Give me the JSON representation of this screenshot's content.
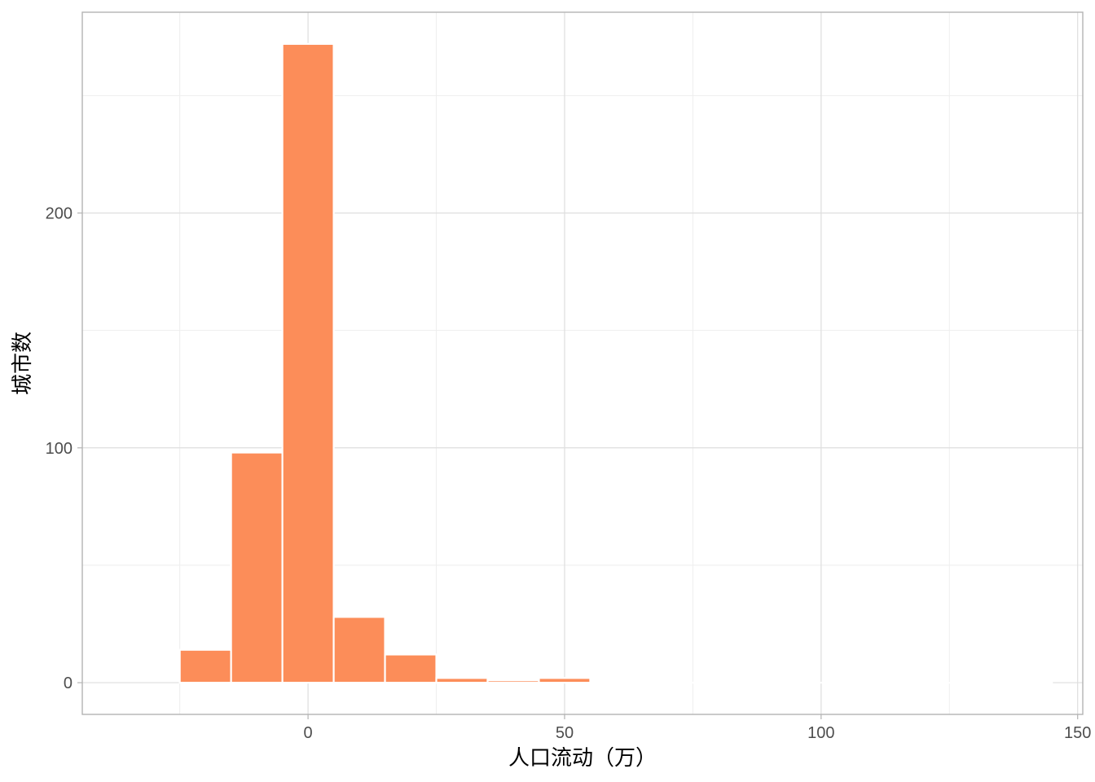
{
  "chart_data": {
    "type": "bar",
    "subtype": "histogram",
    "title": "",
    "xlabel": "人口流动（万）",
    "ylabel": "城市数",
    "bin_width": 10,
    "bins": [
      {
        "x_start": -25,
        "x_end": -15,
        "count": 14
      },
      {
        "x_start": -15,
        "x_end": -5,
        "count": 98
      },
      {
        "x_start": -5,
        "x_end": 5,
        "count": 272
      },
      {
        "x_start": 5,
        "x_end": 15,
        "count": 28
      },
      {
        "x_start": 15,
        "x_end": 25,
        "count": 12
      },
      {
        "x_start": 25,
        "x_end": 35,
        "count": 2
      },
      {
        "x_start": 35,
        "x_end": 45,
        "count": 1
      },
      {
        "x_start": 45,
        "x_end": 55,
        "count": 2
      },
      {
        "x_start": 55,
        "x_end": 65,
        "count": 0
      },
      {
        "x_start": 65,
        "x_end": 75,
        "count": 0
      },
      {
        "x_start": 75,
        "x_end": 85,
        "count": 0
      },
      {
        "x_start": 85,
        "x_end": 95,
        "count": 0
      },
      {
        "x_start": 95,
        "x_end": 105,
        "count": 0
      },
      {
        "x_start": 105,
        "x_end": 115,
        "count": 0
      },
      {
        "x_start": 115,
        "x_end": 125,
        "count": 0
      },
      {
        "x_start": 125,
        "x_end": 135,
        "count": 0
      },
      {
        "x_start": 135,
        "x_end": 145,
        "count": 0
      }
    ],
    "xlim": [
      -44,
      151
    ],
    "ylim": [
      -13.5,
      285.5
    ],
    "x_major_ticks": [
      0,
      50,
      100,
      150
    ],
    "x_minor_grid": [
      -25,
      25,
      75,
      125
    ],
    "y_major_ticks": [
      0,
      100,
      200
    ],
    "y_minor_grid": [
      50,
      150,
      250
    ],
    "grid": true,
    "legend": "none",
    "colors": {
      "bar_fill": "#FC8D59",
      "bar_outline": "#FFFFFF",
      "grid_major": "#DEDEDE",
      "grid_minor": "#EEEEEE",
      "panel_border": "#B3B3B3",
      "tick_text": "#4D4D4D",
      "axis_title_text": "#000000"
    }
  }
}
